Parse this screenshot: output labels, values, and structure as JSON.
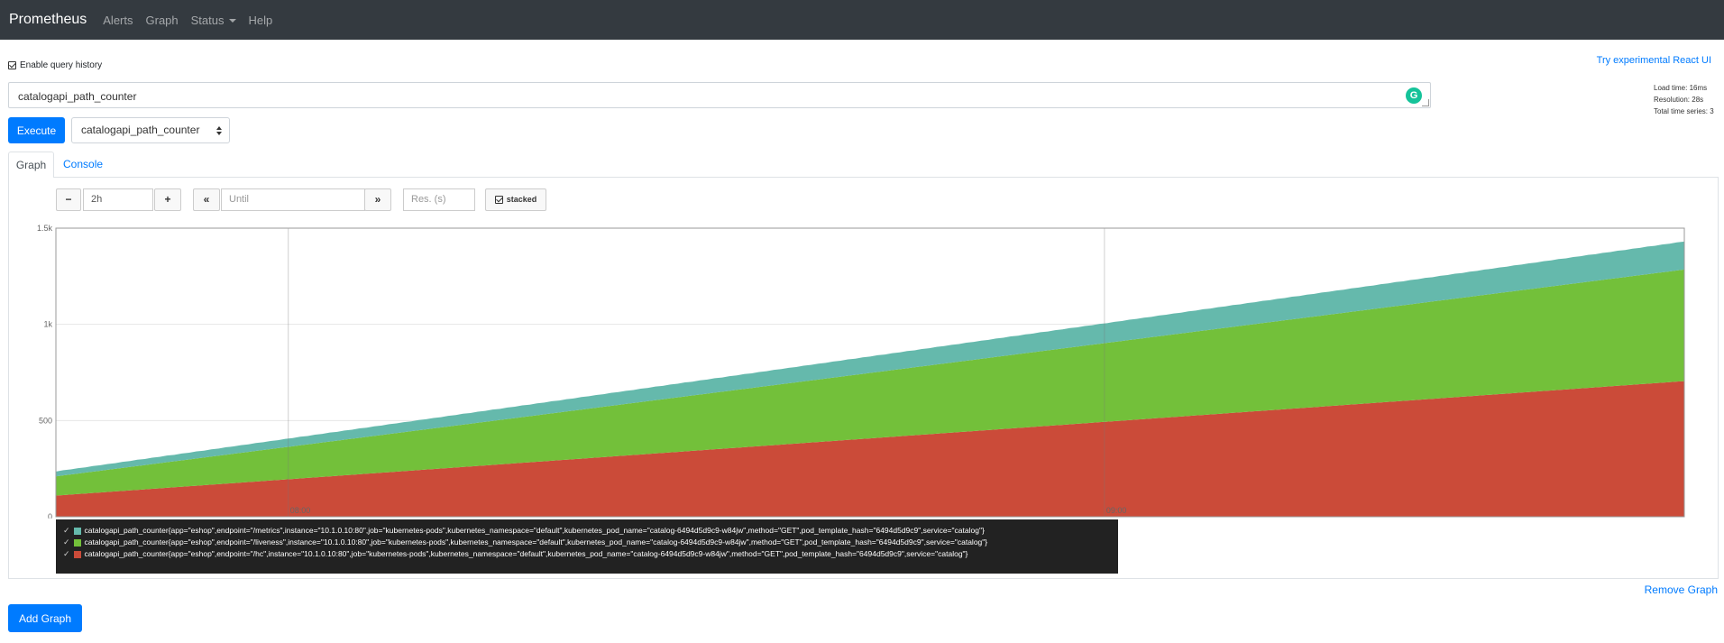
{
  "navbar": {
    "brand": "Prometheus",
    "links": [
      {
        "label": "Alerts"
      },
      {
        "label": "Graph"
      },
      {
        "label": "Status"
      },
      {
        "label": "Help"
      }
    ]
  },
  "history_toggle": "Enable query history",
  "react_link": "Try experimental React UI",
  "query": {
    "value": "catalogapi_path_counter"
  },
  "stats": {
    "load_time": "Load time: 16ms",
    "resolution": "Resolution: 28s",
    "total_series": "Total time series: 3"
  },
  "execute_label": "Execute",
  "metric_select": "catalogapi_path_counter",
  "tabs": {
    "graph": "Graph",
    "console": "Console"
  },
  "controls": {
    "minus": "−",
    "range": "2h",
    "plus": "+",
    "back": "«",
    "until_placeholder": "Until",
    "forward": "»",
    "res_placeholder": "Res. (s)",
    "stacked": "stacked"
  },
  "chart_data": {
    "type": "area",
    "stacked": true,
    "x_ticks": [
      "08:00",
      "09:00"
    ],
    "x_tick_positions": [
      0.1427,
      0.6439
    ],
    "y_ticks": [
      "0",
      "500",
      "1k",
      "1.5k"
    ],
    "y_tick_values": [
      0,
      500,
      1000,
      1500
    ],
    "ylim": [
      0,
      1500
    ],
    "series": [
      {
        "name": "catalogapi_path_counter{app=\"eshop\",endpoint=\"/hc\",instance=\"10.1.0.10:80\",job=\"kubernetes-pods\",kubernetes_namespace=\"default\",kubernetes_pod_name=\"catalog-6494d5d9c9-w84jw\",method=\"GET\",pod_template_hash=\"6494d5d9c9\",service=\"catalog\"}",
        "color": "#cb4b39",
        "start": 110,
        "end": 705
      },
      {
        "name": "catalogapi_path_counter{app=\"eshop\",endpoint=\"/liveness\",instance=\"10.1.0.10:80\",job=\"kubernetes-pods\",kubernetes_namespace=\"default\",kubernetes_pod_name=\"catalog-6494d5d9c9-w84jw\",method=\"GET\",pod_template_hash=\"6494d5d9c9\",service=\"catalog\"}",
        "color": "#73c03a",
        "start": 100,
        "end": 580
      },
      {
        "name": "catalogapi_path_counter{app=\"eshop\",endpoint=\"/metrics\",instance=\"10.1.0.10:80\",job=\"kubernetes-pods\",kubernetes_namespace=\"default\",kubernetes_pod_name=\"catalog-6494d5d9c9-w84jw\",method=\"GET\",pod_template_hash=\"6494d5d9c9\",service=\"catalog\"}",
        "color": "#65b9ac",
        "start": 25,
        "end": 145
      }
    ],
    "legend_order": [
      2,
      1,
      0
    ]
  },
  "remove_graph": "Remove Graph",
  "add_graph": "Add Graph"
}
